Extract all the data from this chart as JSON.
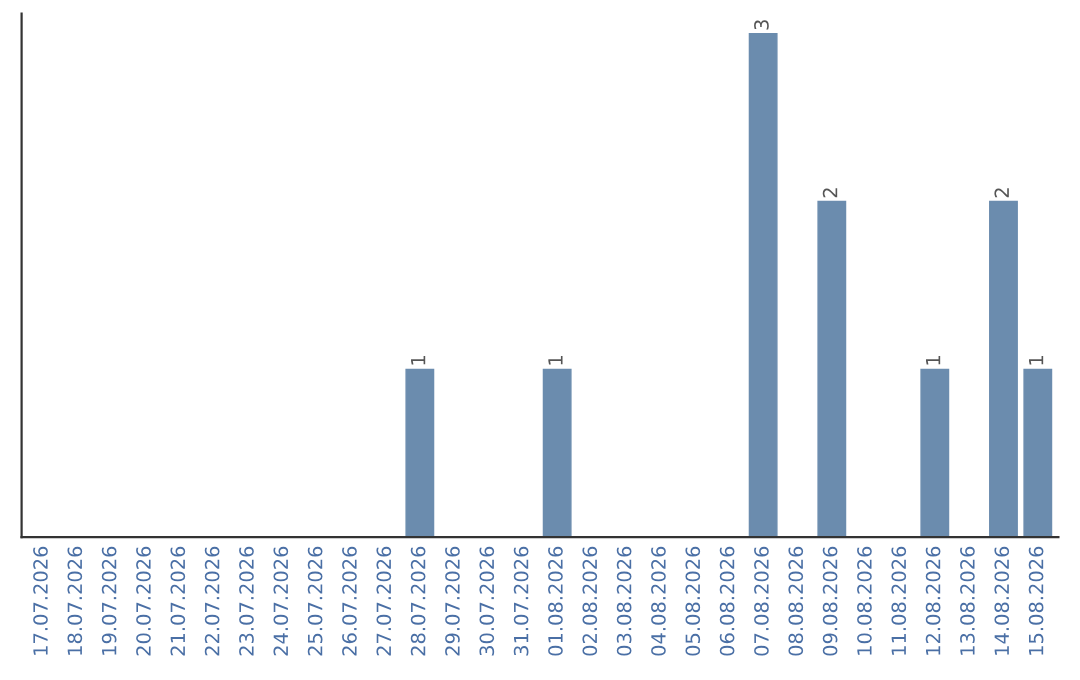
{
  "chart_data": {
    "type": "bar",
    "categories": [
      "17.07.2026",
      "18.07.2026",
      "19.07.2026",
      "20.07.2026",
      "21.07.2026",
      "22.07.2026",
      "23.07.2026",
      "24.07.2026",
      "25.07.2026",
      "26.07.2026",
      "27.07.2026",
      "28.07.2026",
      "29.07.2026",
      "30.07.2026",
      "31.07.2026",
      "01.08.2026",
      "02.08.2026",
      "03.08.2026",
      "04.08.2026",
      "05.08.2026",
      "06.08.2026",
      "07.08.2026",
      "08.08.2026",
      "09.08.2026",
      "10.08.2026",
      "11.08.2026",
      "12.08.2026",
      "13.08.2026",
      "14.08.2026",
      "15.08.2026"
    ],
    "values": [
      0,
      0,
      0,
      0,
      0,
      0,
      0,
      0,
      0,
      0,
      0,
      1,
      0,
      0,
      0,
      1,
      0,
      0,
      0,
      0,
      0,
      3,
      0,
      2,
      0,
      0,
      1,
      0,
      2,
      1
    ],
    "value_labels": [
      null,
      null,
      null,
      null,
      null,
      null,
      null,
      null,
      null,
      null,
      null,
      "1",
      null,
      null,
      null,
      "1",
      null,
      null,
      null,
      null,
      null,
      "3",
      null,
      "2",
      null,
      null,
      "1",
      null,
      "2",
      "1"
    ],
    "color": "#6b8cae",
    "tick_labels": "x",
    "grid": false
  }
}
